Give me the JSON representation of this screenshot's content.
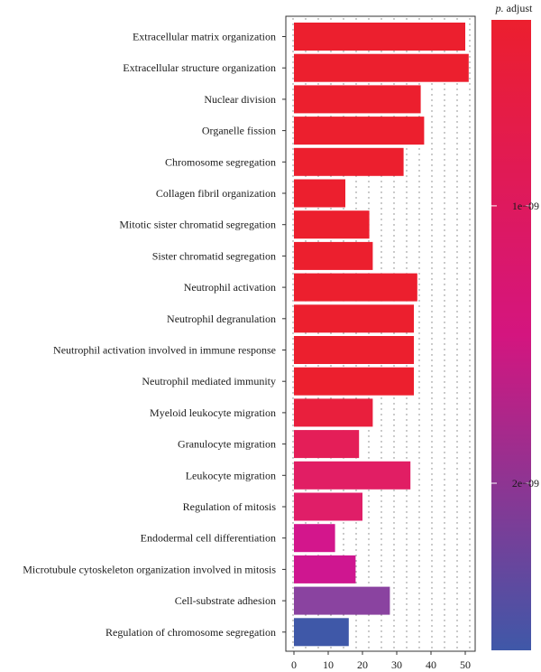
{
  "chart_data": {
    "type": "bar",
    "orientation": "horizontal",
    "categories": [
      "Extracellular matrix organization",
      "Extracellular structure organization",
      "Nuclear division",
      "Organelle fission",
      "Chromosome segregation",
      "Collagen fibril organization",
      "Mitotic sister chromatid segregation",
      "Sister chromatid segregation",
      "Neutrophil activation",
      "Neutrophil degranulation",
      "Neutrophil activation involved in immune response",
      "Neutrophil mediated immunity",
      "Myeloid leukocyte migration",
      "Granulocyte migration",
      "Leukocyte migration",
      "Regulation of mitosis",
      "Endodermal cell differentiation",
      "Microtubule cytoskeleton organization involved in mitosis",
      "Cell-substrate adhesion",
      "Regulation of chromosome segregation"
    ],
    "values": [
      50,
      51,
      37,
      38,
      32,
      15,
      22,
      23,
      36,
      35,
      35,
      35,
      23,
      19,
      34,
      20,
      12,
      18,
      28,
      16
    ],
    "colors": [
      "#ec1f2e",
      "#ec1f2e",
      "#ec1f2e",
      "#ec1f2e",
      "#ec1f2e",
      "#ec1f2e",
      "#ec1f2e",
      "#ec1f2e",
      "#ec1f2e",
      "#ec1f2e",
      "#ec1f2e",
      "#ec1f2e",
      "#e91f3d",
      "#e41e58",
      "#e11e64",
      "#e01e68",
      "#d3168c",
      "#cf1690",
      "#8a43a0",
      "#3f58a8"
    ],
    "x_ticks": [
      "0",
      "10",
      "20",
      "30",
      "40",
      "50"
    ],
    "xlim": [
      0,
      52
    ],
    "legend": {
      "title": "p. adjust",
      "tick_labels": [
        "1e−09",
        "2e−09"
      ],
      "tick_fractions": [
        0.295,
        0.735
      ],
      "gradient_top": "#ec1f2e",
      "gradient_mid": "#d4157f",
      "gradient_bottom": "#3f58a8"
    }
  }
}
